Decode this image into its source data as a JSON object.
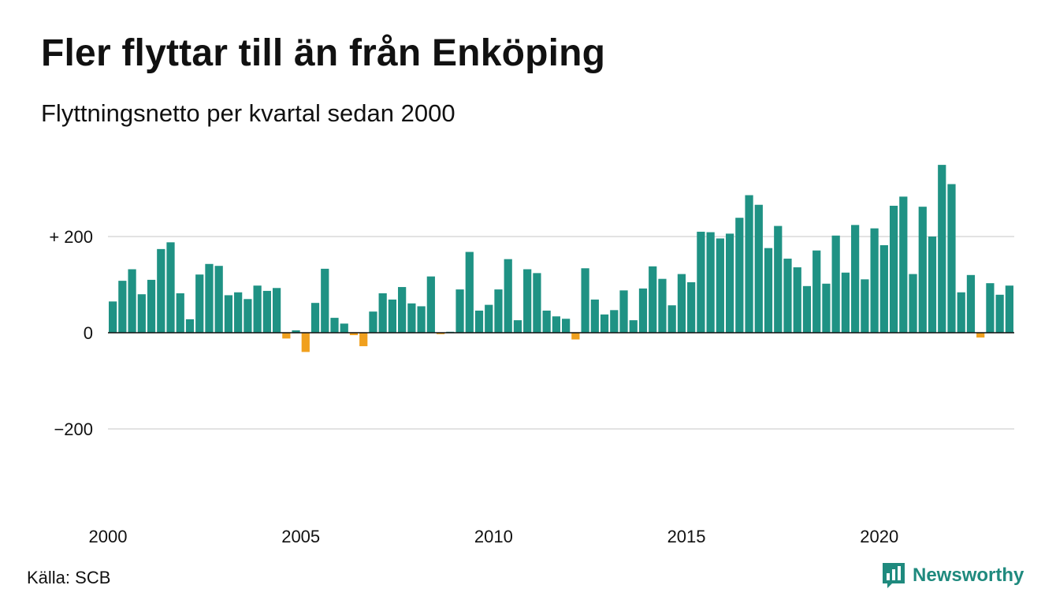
{
  "title": "Fler flyttar till än från Enköping",
  "subtitle": "Flyttningsnetto per kvartal sedan 2000",
  "source": "Källa: SCB",
  "brand": {
    "name": "Newsworthy",
    "icon": "newsworthy-logo-icon",
    "color": "#1f8a7e"
  },
  "colors": {
    "positive": "#1f9284",
    "negative": "#f0a01e",
    "gridline": "#e3e3e3",
    "zero_line": "#111111"
  },
  "chart_data": {
    "type": "bar",
    "ylim": [
      -390,
      390
    ],
    "yticks": [
      200,
      0,
      -200
    ],
    "ytick_labels": [
      "+ 200",
      "0",
      "−200"
    ],
    "xticks": [
      "2000",
      "2005",
      "2010",
      "2015",
      "2020"
    ],
    "grid": true,
    "legend": "none",
    "x_start_year": 2000,
    "values": [
      65,
      108,
      132,
      80,
      110,
      174,
      188,
      82,
      28,
      121,
      143,
      139,
      78,
      84,
      70,
      98,
      87,
      93,
      -12,
      5,
      -40,
      62,
      133,
      31,
      19,
      -5,
      -28,
      44,
      82,
      69,
      95,
      61,
      55,
      117,
      -3,
      2,
      90,
      168,
      46,
      58,
      90,
      153,
      26,
      132,
      124,
      46,
      34,
      29,
      -14,
      134,
      69,
      38,
      47,
      88,
      26,
      92,
      138,
      112,
      57,
      122,
      105,
      210,
      209,
      196,
      206,
      239,
      286,
      266,
      176,
      222,
      154,
      136,
      97,
      171,
      102,
      202,
      125,
      224,
      111,
      217,
      182,
      264,
      283,
      122,
      262,
      200,
      349,
      309,
      84,
      120,
      -10,
      103,
      79,
      98
    ]
  }
}
